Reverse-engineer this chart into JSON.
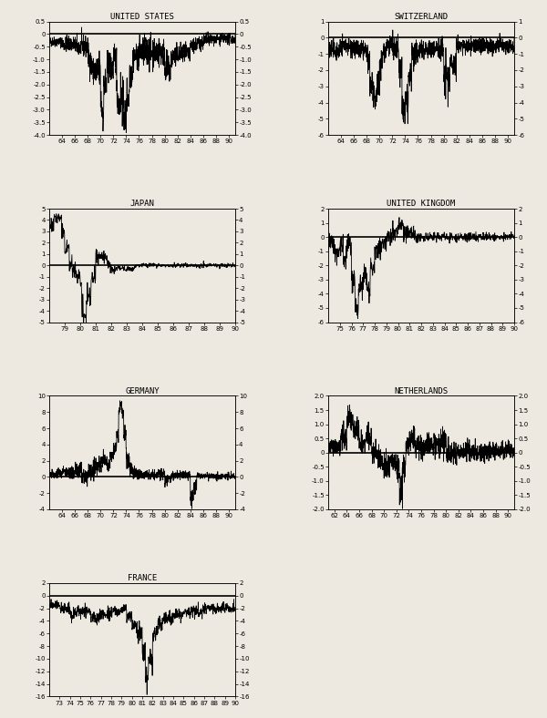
{
  "panels": [
    {
      "title": "UNITED STATES",
      "xstart": 62,
      "xend": 91,
      "xticks": [
        64,
        66,
        68,
        70,
        72,
        74,
        76,
        78,
        80,
        82,
        84,
        86,
        88,
        90
      ],
      "ylim": [
        -4.0,
        0.5
      ],
      "yticks_left": [
        0.5,
        0,
        -0.5,
        -1.0,
        -1.5,
        -2.0,
        -2.5,
        -3.0,
        -3.5,
        -4.0
      ],
      "yticks_right": [
        0.5,
        0,
        -0.5,
        -1.0,
        -1.5,
        -2.0,
        -2.5,
        -3.0,
        -3.5,
        -4.0
      ],
      "zero_line": 0,
      "row": 0,
      "col": 0
    },
    {
      "title": "SWITZERLAND",
      "xstart": 62,
      "xend": 91,
      "xticks": [
        64,
        66,
        68,
        70,
        72,
        74,
        76,
        78,
        80,
        82,
        84,
        86,
        88,
        90
      ],
      "ylim": [
        -6.0,
        1.0
      ],
      "yticks_left": [
        1,
        0,
        -1,
        -2,
        -3,
        -4,
        -5,
        -6
      ],
      "yticks_right": [
        1,
        0,
        -1,
        -2,
        -3,
        -4,
        -5,
        -6
      ],
      "zero_line": 0,
      "row": 0,
      "col": 1
    },
    {
      "title": "JAPAN",
      "xstart": 78,
      "xend": 90,
      "xticks": [
        79,
        80,
        81,
        82,
        83,
        84,
        85,
        86,
        87,
        88,
        89,
        90
      ],
      "ylim": [
        -5.0,
        5.0
      ],
      "yticks_left": [
        5,
        4,
        3,
        2,
        1,
        0,
        -1,
        -2,
        -3,
        -4,
        -5
      ],
      "yticks_right": [
        5,
        4,
        3,
        2,
        1,
        0,
        -1,
        -2,
        -3,
        -4,
        -5
      ],
      "zero_line": 0,
      "row": 1,
      "col": 0
    },
    {
      "title": "UNITED KINGDOM",
      "xstart": 74,
      "xend": 90,
      "xticks": [
        75,
        76,
        77,
        78,
        79,
        80,
        81,
        82,
        83,
        84,
        85,
        86,
        87,
        88,
        89,
        90
      ],
      "ylim": [
        -6.0,
        2.0
      ],
      "yticks_left": [
        2,
        1,
        0,
        -1,
        -2,
        -3,
        -4,
        -5,
        -6
      ],
      "yticks_right": [
        2,
        1,
        0,
        -1,
        -2,
        -3,
        -4,
        -5,
        -6
      ],
      "zero_line": 0,
      "row": 1,
      "col": 1
    },
    {
      "title": "GERMANY",
      "xstart": 62,
      "xend": 91,
      "xticks": [
        64,
        66,
        68,
        70,
        72,
        74,
        76,
        78,
        80,
        82,
        84,
        86,
        88,
        90
      ],
      "ylim": [
        -4.0,
        10.0
      ],
      "yticks_left": [
        10,
        8,
        6,
        4,
        2,
        0,
        -2,
        -4
      ],
      "yticks_right": [
        10,
        8,
        6,
        4,
        2,
        0,
        -2,
        -4
      ],
      "zero_line": 0,
      "row": 2,
      "col": 0
    },
    {
      "title": "NETHERLANDS",
      "xstart": 61,
      "xend": 91,
      "xticks": [
        62,
        64,
        66,
        68,
        70,
        72,
        74,
        76,
        78,
        80,
        82,
        84,
        86,
        88,
        90
      ],
      "ylim": [
        -2.0,
        2.0
      ],
      "yticks_left": [
        2.0,
        1.5,
        1.0,
        0.5,
        0,
        -0.5,
        -1.0,
        -1.5,
        -2.0
      ],
      "yticks_right": [
        2.0,
        1.5,
        1.0,
        0.5,
        0,
        -0.5,
        -1.0,
        -1.5,
        -2.0
      ],
      "zero_line": 0,
      "row": 2,
      "col": 1
    },
    {
      "title": "FRANCE",
      "xstart": 72,
      "xend": 90,
      "xticks": [
        73,
        74,
        75,
        76,
        77,
        78,
        79,
        80,
        81,
        82,
        83,
        84,
        85,
        86,
        87,
        88,
        89,
        90
      ],
      "ylim": [
        -16.0,
        2.0
      ],
      "yticks_left": [
        2,
        0,
        -2,
        -4,
        -6,
        -8,
        -10,
        -12,
        -14,
        -16
      ],
      "yticks_right": [
        2,
        0,
        -2,
        -4,
        -6,
        -8,
        -10,
        -12,
        -14,
        -16
      ],
      "zero_line": 0,
      "row": 3,
      "col": 0
    }
  ],
  "bg_color": "#ede8e0",
  "line_color": "#000000",
  "zero_line_color": "#000000",
  "fontsize_title": 6.5,
  "fontsize_tick": 5.0
}
